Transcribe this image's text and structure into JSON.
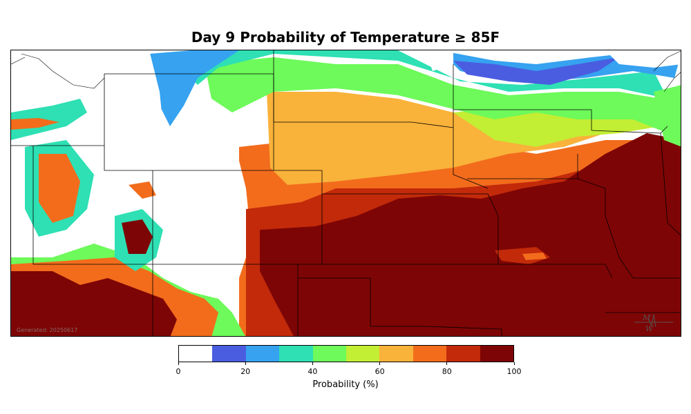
{
  "title": "Day 9 Probability of Temperature ≥ 85F",
  "generated_label": "Generated: 20250617",
  "colorbar": {
    "label": "Probability (%)",
    "bounds": [
      0,
      10,
      20,
      30,
      40,
      50,
      60,
      70,
      80,
      90,
      100
    ],
    "colors": [
      "#ffffff",
      "#4a5de0",
      "#36a2f0",
      "#2ee0b4",
      "#6dfa5a",
      "#c2ee33",
      "#f9b23a",
      "#f26c1c",
      "#c22a0a",
      "#7e0505"
    ],
    "tick_labels": [
      "0",
      "20",
      "40",
      "60",
      "80",
      "100"
    ],
    "tick_values": [
      0,
      20,
      40,
      60,
      80,
      100
    ]
  }
}
